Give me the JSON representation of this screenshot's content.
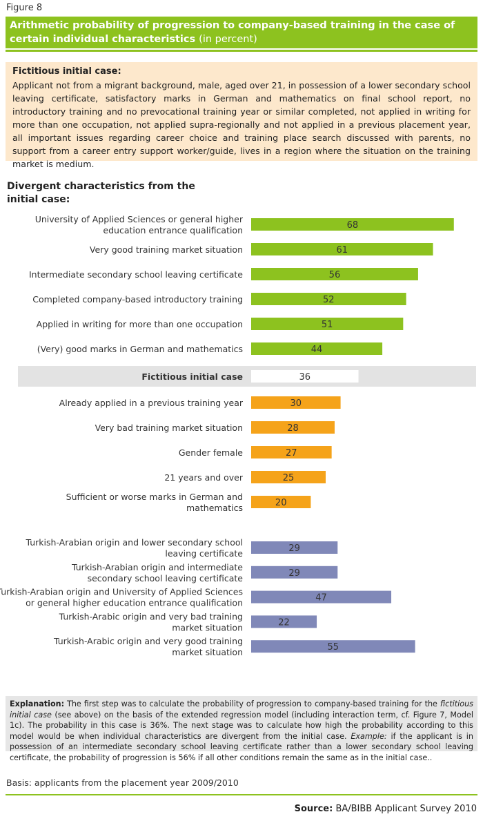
{
  "figure_label": "Figure 8",
  "title": {
    "main": "Arithmetic probability of progression to company-based training in the case of certain individual characteristics",
    "unit": "(in percent)"
  },
  "initial_case": {
    "heading": "Fictitious initial case:",
    "text": "Applicant not from a migrant background, male, aged over 21, in possession of a lower secondary school leaving certificate, satisfactory marks in German and mathematics on final school report, no introductory training and no prevocational training year or similar completed, not applied in writing for more than one occupation, not applied supra-regionally and not applied in a previous placement year, all important issues regarding career choice and training place search discussed with parents, no support from a career entry support worker/guide, lives in a region where the situation on the training market is medium."
  },
  "section_heading": "Divergent characteristics from the initial case:",
  "colors": {
    "positive": "#8dc21f",
    "baseline": "#ffffff",
    "baseline_band": "#e3e3e3",
    "negative": "#f5a31a",
    "migrant": "#8088b8",
    "rule": "#8dc21f"
  },
  "chart_data": {
    "type": "bar",
    "orientation": "horizontal",
    "xlim": [
      0,
      76
    ],
    "groups": [
      {
        "name": "positive",
        "bars": [
          {
            "label": [
              "University of Applied Sciences or general higher",
              "education entrance qualification"
            ],
            "value": 68
          },
          {
            "label": [
              "Very good training market situation"
            ],
            "value": 61
          },
          {
            "label": [
              "Intermediate secondary school leaving certificate"
            ],
            "value": 56
          },
          {
            "label": [
              "Completed company-based introductory training"
            ],
            "value": 52
          },
          {
            "label": [
              "Applied in writing for more than one occupation"
            ],
            "value": 51
          },
          {
            "label": [
              "(Very) good marks in German and mathematics"
            ],
            "value": 44
          }
        ]
      },
      {
        "name": "baseline",
        "bars": [
          {
            "label": [
              "Fictitious initial case"
            ],
            "value": 36
          }
        ]
      },
      {
        "name": "negative",
        "bars": [
          {
            "label": [
              "Already applied in a previous training year"
            ],
            "value": 30
          },
          {
            "label": [
              "Very bad training market situation"
            ],
            "value": 28
          },
          {
            "label": [
              "Gender female"
            ],
            "value": 27
          },
          {
            "label": [
              "21 years and over"
            ],
            "value": 25
          },
          {
            "label": [
              "Sufficient or worse marks in German and",
              "mathematics"
            ],
            "value": 20
          }
        ]
      },
      {
        "name": "migrant",
        "bars": [
          {
            "label": [
              "Turkish-Arabian origin and lower secondary school",
              "leaving certificate"
            ],
            "value": 29
          },
          {
            "label": [
              "Turkish-Arabian origin and intermediate",
              "secondary school leaving certificate"
            ],
            "value": 29
          },
          {
            "label": [
              "Turkish-Arabian origin and University of Applied Sciences",
              "or general higher education entrance qualification"
            ],
            "value": 47
          },
          {
            "label": [
              "Turkish-Arabic origin and very bad training",
              "market situation"
            ],
            "value": 22
          },
          {
            "label": [
              "Turkish-Arabic origin and very good training",
              "market situation"
            ],
            "value": 55
          }
        ]
      }
    ]
  },
  "explanation": {
    "lead": "Explanation:",
    "p1": " The first step was to calculate the probability of progression to company-based training for the ",
    "p1_italic": "fictitious initial case",
    "p2": " (see above) on the basis of the extended regression model (including interaction term, cf. Figure 7, Model 1c). The probability in this case is 36%. The next stage was to calculate how high the probability according to this model would be when individual characteristics are divergent from the initial case. ",
    "example_label": "Example:",
    "p3": " if the applicant is in possession of an intermediate secondary school leaving certificate rather than a lower secondary school leaving certificate, the probability of progression is 56% if all other conditions remain the same as in the initial case.."
  },
  "basis": "Basis: applicants from the placement year 2009/2010",
  "source": {
    "label": "Source:",
    "text": " BA/BIBB Applicant Survey 2010"
  }
}
